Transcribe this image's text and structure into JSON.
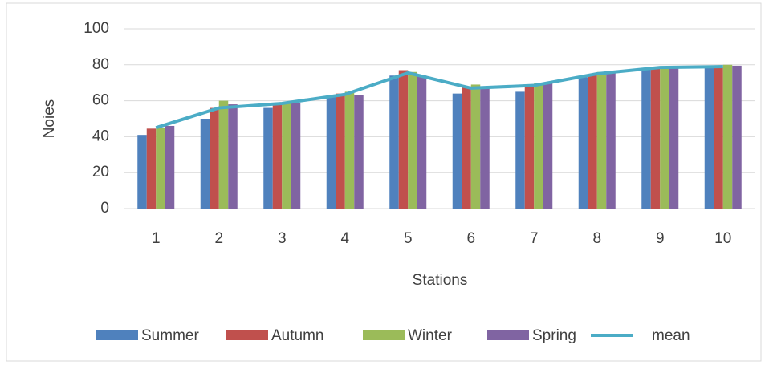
{
  "chart_data": {
    "type": "bar",
    "y_label": "Noies",
    "x_label": "Stations",
    "categories": [
      "1",
      "2",
      "3",
      "4",
      "5",
      "6",
      "7",
      "8",
      "9",
      "10"
    ],
    "series": [
      {
        "name": "Summer",
        "color": "#4f81bd",
        "values": [
          41,
          50,
          56,
          62,
          74,
          64,
          65,
          73,
          78,
          79
        ]
      },
      {
        "name": "Autumn",
        "color": "#c0504d",
        "values": [
          44.5,
          56,
          58,
          64,
          77,
          68,
          69,
          75,
          78,
          79
        ]
      },
      {
        "name": "Winter",
        "color": "#9bbb59",
        "values": [
          45,
          60,
          59,
          65,
          76,
          69,
          70,
          76,
          79,
          80
        ]
      },
      {
        "name": "Spring",
        "color": "#8064a2",
        "values": [
          46,
          58,
          59,
          63,
          74,
          68,
          70,
          76,
          79,
          79.5
        ]
      },
      {
        "name": "mean",
        "color": "#4bacc6",
        "type": "line",
        "values": [
          45,
          56,
          58.5,
          63.5,
          75.5,
          67,
          68.5,
          75,
          78.5,
          79
        ]
      }
    ],
    "ylim": [
      0,
      100
    ],
    "yticks": [
      0,
      20,
      40,
      60,
      80,
      100
    ],
    "grid": true,
    "legend": "bottom"
  }
}
